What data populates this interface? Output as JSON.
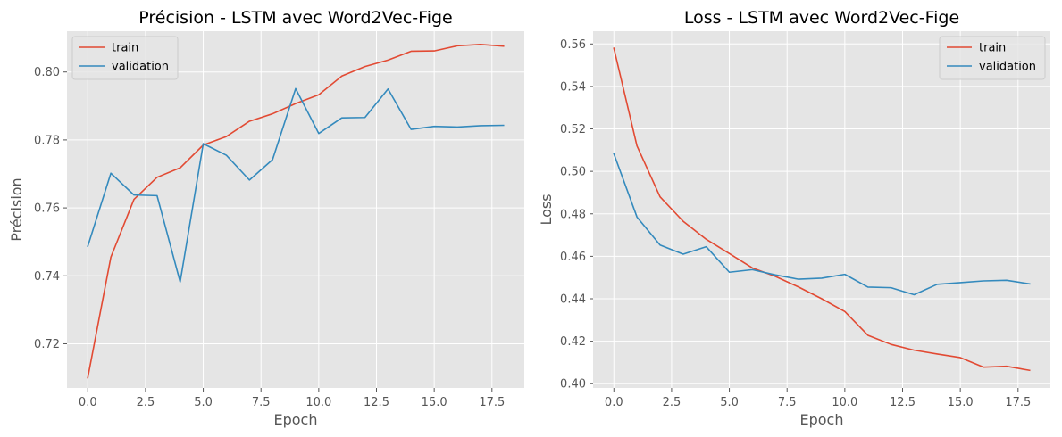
{
  "chart_data": [
    {
      "type": "line",
      "title": "Précision - LSTM avec Word2Vec-Fige",
      "xlabel": "Epoch",
      "ylabel": "Précision",
      "xlim": [
        -0.9,
        18.9
      ],
      "ylim": [
        0.707,
        0.812
      ],
      "xticks": [
        0.0,
        2.5,
        5.0,
        7.5,
        10.0,
        12.5,
        15.0,
        17.5
      ],
      "xtick_labels": [
        "0.0",
        "2.5",
        "5.0",
        "7.5",
        "10.0",
        "12.5",
        "15.0",
        "17.5"
      ],
      "yticks": [
        0.72,
        0.74,
        0.76,
        0.78,
        0.8
      ],
      "ytick_labels": [
        "0.72",
        "0.74",
        "0.76",
        "0.78",
        "0.80"
      ],
      "grid": true,
      "legend_position": "upper-left",
      "x": [
        0,
        1,
        2,
        3,
        4,
        5,
        6,
        7,
        8,
        9,
        10,
        11,
        12,
        13,
        14,
        15,
        16,
        17,
        18
      ],
      "series": [
        {
          "name": "train",
          "color": "#E24A33",
          "values": [
            0.71,
            0.7455,
            0.7625,
            0.769,
            0.7718,
            0.7785,
            0.781,
            0.7855,
            0.7877,
            0.7907,
            0.7933,
            0.7988,
            0.8016,
            0.8035,
            0.8061,
            0.8062,
            0.8077,
            0.8081,
            0.8076
          ]
        },
        {
          "name": "validation",
          "color": "#348ABD",
          "values": [
            0.7487,
            0.7702,
            0.7638,
            0.7636,
            0.7382,
            0.7789,
            0.7755,
            0.7682,
            0.7742,
            0.7951,
            0.7819,
            0.7865,
            0.7866,
            0.795,
            0.7831,
            0.784,
            0.7838,
            0.7842,
            0.7843
          ]
        }
      ]
    },
    {
      "type": "line",
      "title": "Loss - LSTM avec Word2Vec-Fige",
      "xlabel": "Epoch",
      "ylabel": "Loss",
      "xlim": [
        -0.9,
        18.9
      ],
      "ylim": [
        0.398,
        0.566
      ],
      "xticks": [
        0.0,
        2.5,
        5.0,
        7.5,
        10.0,
        12.5,
        15.0,
        17.5
      ],
      "xtick_labels": [
        "0.0",
        "2.5",
        "5.0",
        "7.5",
        "10.0",
        "12.5",
        "15.0",
        "17.5"
      ],
      "yticks": [
        0.4,
        0.42,
        0.44,
        0.46,
        0.48,
        0.5,
        0.52,
        0.54,
        0.56
      ],
      "ytick_labels": [
        "0.40",
        "0.42",
        "0.44",
        "0.46",
        "0.48",
        "0.50",
        "0.52",
        "0.54",
        "0.56"
      ],
      "grid": true,
      "legend_position": "upper-right",
      "x": [
        0,
        1,
        2,
        3,
        4,
        5,
        6,
        7,
        8,
        9,
        10,
        11,
        12,
        13,
        14,
        15,
        16,
        17,
        18
      ],
      "series": [
        {
          "name": "train",
          "color": "#E24A33",
          "values": [
            0.558,
            0.512,
            0.488,
            0.4765,
            0.468,
            0.4613,
            0.4545,
            0.4505,
            0.4455,
            0.44,
            0.434,
            0.4228,
            0.4185,
            0.4158,
            0.414,
            0.4123,
            0.4078,
            0.4082,
            0.4063
          ]
        },
        {
          "name": "validation",
          "color": "#348ABD",
          "values": [
            0.5083,
            0.4785,
            0.4653,
            0.461,
            0.4645,
            0.4525,
            0.4537,
            0.4512,
            0.4492,
            0.4497,
            0.4515,
            0.4455,
            0.4452,
            0.4419,
            0.4468,
            0.4476,
            0.4484,
            0.4487,
            0.447
          ]
        }
      ]
    }
  ]
}
